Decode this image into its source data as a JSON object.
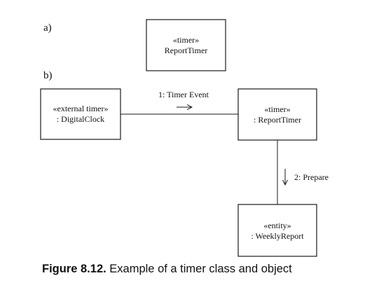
{
  "parts": {
    "a_label": "a)",
    "b_label": "b)"
  },
  "part_a": {
    "report_timer": {
      "stereotype": "«timer»",
      "name": "ReportTimer"
    }
  },
  "part_b": {
    "digital_clock": {
      "stereotype": "«external timer»",
      "name": ": DigitalClock"
    },
    "report_timer": {
      "stereotype": "«timer»",
      "name": ": ReportTimer"
    },
    "weekly_report": {
      "stereotype": "«entity»",
      "name": ": WeeklyReport"
    },
    "messages": {
      "timer_event": "1: Timer Event",
      "prepare": "2: Prepare"
    }
  },
  "caption": {
    "number": "Figure 8.12.",
    "text": " Example of a timer class and object"
  }
}
